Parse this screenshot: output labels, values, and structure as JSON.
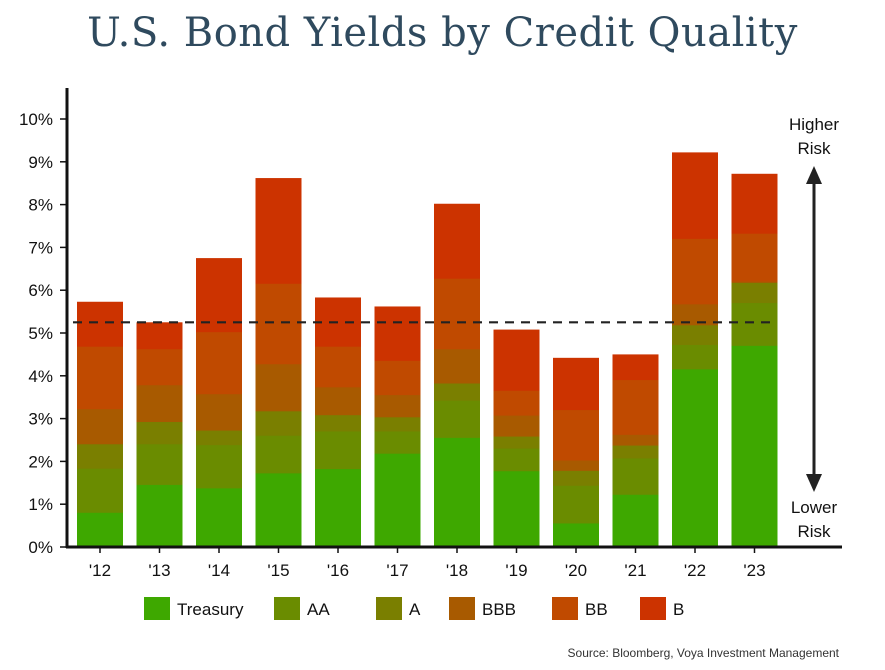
{
  "title": "U.S. Bond Yields by Credit Quality",
  "source": "Source: Bloomberg, Voya Investment Management",
  "risk_labels": {
    "higher": [
      "Higher",
      "Risk"
    ],
    "lower": [
      "Lower",
      "Risk"
    ]
  },
  "colors": {
    "Treasury": "#3ea800",
    "AA": "#6a8c00",
    "A": "#7a7f00",
    "BBB": "#a85a00",
    "BB": "#c04a00",
    "B": "#cc3300",
    "reference_line": "#222222",
    "axis": "#111111"
  },
  "chart_data": {
    "type": "bar",
    "stacked": false,
    "overlapping": true,
    "categories": [
      "'12",
      "'13",
      "'14",
      "'15",
      "'16",
      "'17",
      "'18",
      "'19",
      "'20",
      "'21",
      "'22",
      "'23"
    ],
    "series": [
      {
        "name": "Treasury",
        "values": [
          0.8,
          1.45,
          1.37,
          1.72,
          1.82,
          2.18,
          2.55,
          1.77,
          0.55,
          1.22,
          4.15,
          4.7
        ]
      },
      {
        "name": "AA",
        "values": [
          1.83,
          2.4,
          2.38,
          2.6,
          2.7,
          2.7,
          3.42,
          2.3,
          1.43,
          2.07,
          4.72,
          5.7
        ]
      },
      {
        "name": "A",
        "values": [
          2.4,
          2.92,
          2.72,
          3.17,
          3.08,
          3.03,
          3.82,
          2.58,
          1.78,
          2.37,
          5.18,
          6.17
        ]
      },
      {
        "name": "BBB",
        "values": [
          3.22,
          3.78,
          3.57,
          4.27,
          3.73,
          3.55,
          4.62,
          3.07,
          2.02,
          2.62,
          5.67,
          6.2
        ]
      },
      {
        "name": "BB",
        "values": [
          4.68,
          4.62,
          5.02,
          6.15,
          4.68,
          4.35,
          6.27,
          3.65,
          3.2,
          3.9,
          7.2,
          7.32
        ]
      },
      {
        "name": "B",
        "values": [
          5.73,
          5.25,
          6.75,
          8.62,
          5.83,
          5.62,
          8.02,
          5.08,
          4.42,
          4.5,
          9.22,
          8.72
        ]
      }
    ],
    "reference_line": 5.25,
    "yticks": [
      "0%",
      "1%",
      "2%",
      "3%",
      "4%",
      "5%",
      "6%",
      "7%",
      "8%",
      "9%",
      "10%"
    ],
    "ylim": [
      0,
      10.5
    ],
    "grid": false,
    "legend": "bottom"
  }
}
